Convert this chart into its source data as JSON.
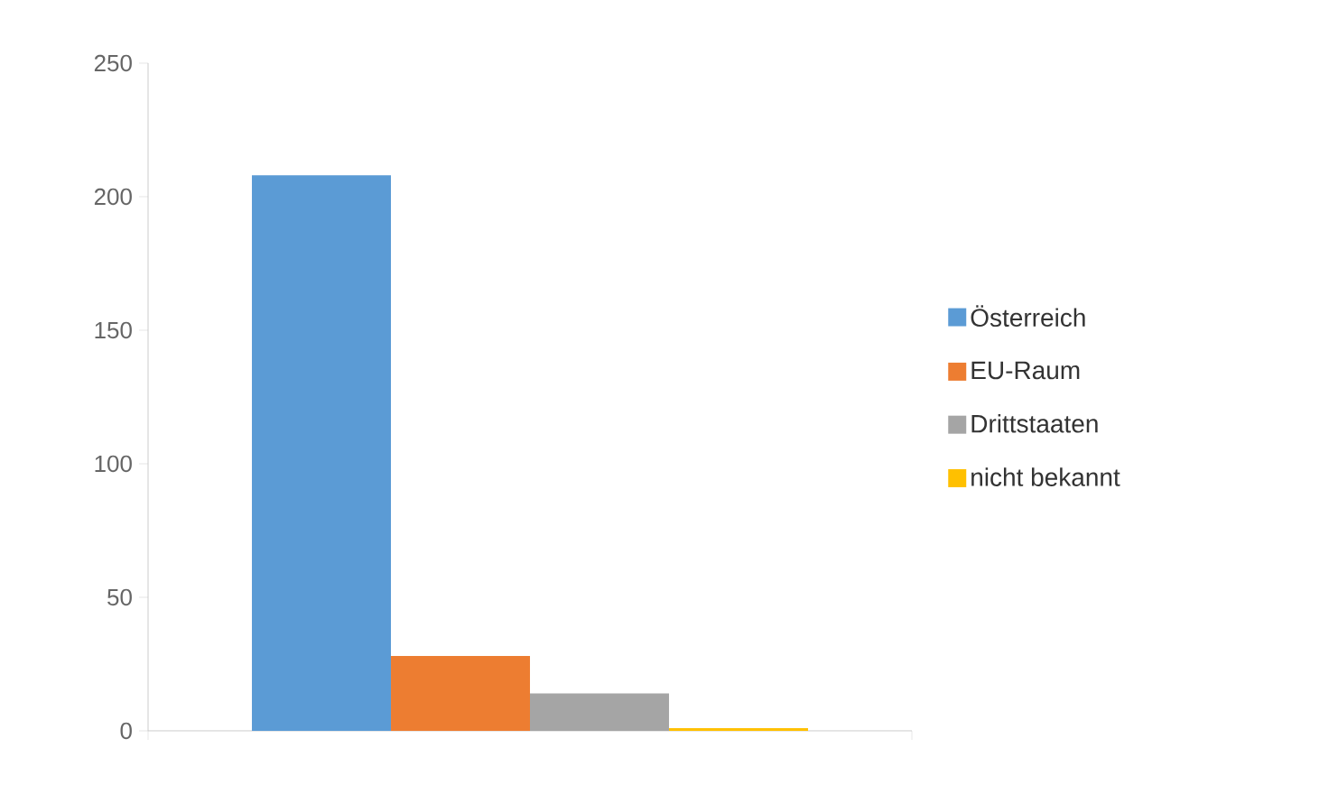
{
  "chart_data": {
    "type": "bar",
    "categories": [
      null
    ],
    "series": [
      {
        "name": "Österreich",
        "color": "#5b9bd5",
        "values": [
          208
        ]
      },
      {
        "name": "EU-Raum",
        "color": "#ed7d31",
        "values": [
          28
        ]
      },
      {
        "name": "Drittstaaten",
        "color": "#a5a5a5",
        "values": [
          14
        ]
      },
      {
        "name": "nicht bekannt",
        "color": "#ffc000",
        "values": [
          1
        ]
      }
    ],
    "ylim": [
      0,
      250
    ],
    "yticks": [
      0,
      50,
      100,
      150,
      200,
      250
    ],
    "legend": "right"
  }
}
